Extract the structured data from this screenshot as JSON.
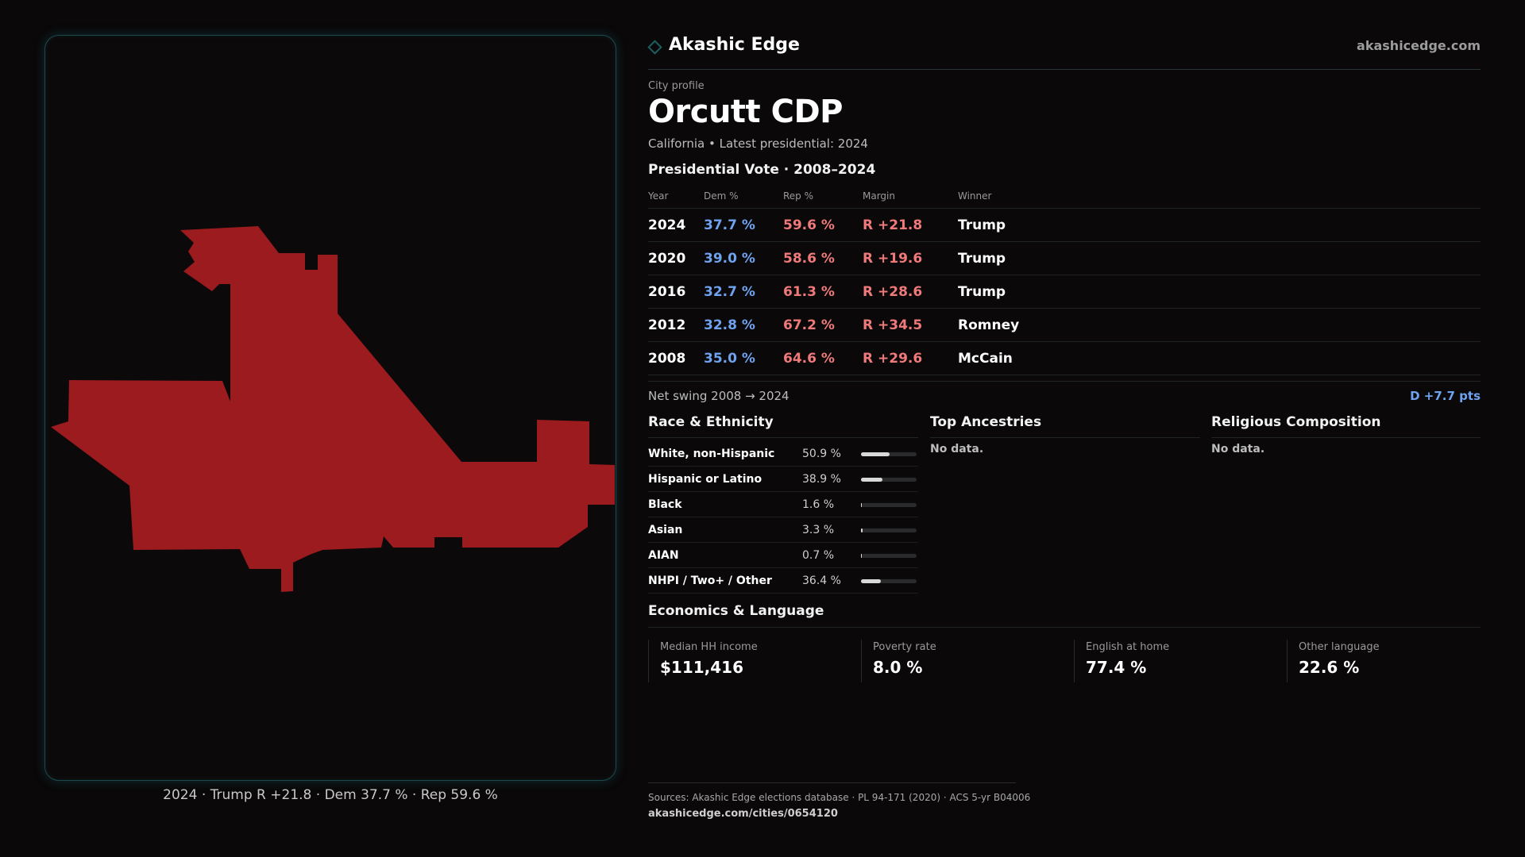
{
  "brand": {
    "name": "Akashic Edge",
    "url": "akashicedge.com",
    "icon": "diamond-icon",
    "icon_color": "#1d5e61"
  },
  "profile": {
    "eyebrow": "City profile",
    "title": "Orcutt CDP",
    "subtitle": "California • Latest presidential: 2024"
  },
  "map": {
    "fill_color": "#9b1b1e",
    "caption": "2024 · Trump R +21.8 · Dem 37.7 % · Rep 59.6 %"
  },
  "vote": {
    "heading": "Presidential Vote · 2008–2024",
    "columns": [
      "Year",
      "Dem %",
      "Rep %",
      "Margin",
      "Winner"
    ],
    "rows": [
      {
        "year": "2024",
        "dem": "37.7 %",
        "rep": "59.6 %",
        "margin": "R +21.8",
        "winner": "Trump"
      },
      {
        "year": "2020",
        "dem": "39.0 %",
        "rep": "58.6 %",
        "margin": "R +19.6",
        "winner": "Trump"
      },
      {
        "year": "2016",
        "dem": "32.7 %",
        "rep": "61.3 %",
        "margin": "R +28.6",
        "winner": "Trump"
      },
      {
        "year": "2012",
        "dem": "32.8 %",
        "rep": "67.2 %",
        "margin": "R +34.5",
        "winner": "Romney"
      },
      {
        "year": "2008",
        "dem": "35.0 %",
        "rep": "64.6 %",
        "margin": "R +29.6",
        "winner": "McCain"
      }
    ],
    "dem_color": "#6fa3ef",
    "rep_color": "#f07a7a"
  },
  "swing": {
    "label": "Net swing 2008 → 2024",
    "value": "D +7.7 pts"
  },
  "race": {
    "heading": "Race & Ethnicity",
    "rows": [
      {
        "label": "White, non-Hispanic",
        "value": "50.9 %",
        "fraction": 0.509
      },
      {
        "label": "Hispanic or Latino",
        "value": "38.9 %",
        "fraction": 0.389
      },
      {
        "label": "Black",
        "value": "1.6 %",
        "fraction": 0.016
      },
      {
        "label": "Asian",
        "value": "3.3 %",
        "fraction": 0.033
      },
      {
        "label": "AIAN",
        "value": "0.7 %",
        "fraction": 0.007
      },
      {
        "label": "NHPI / Two+ / Other",
        "value": "36.4 %",
        "fraction": 0.364
      }
    ]
  },
  "ancestries": {
    "heading": "Top Ancestries",
    "empty": "No data."
  },
  "religion": {
    "heading": "Religious Composition",
    "empty": "No data."
  },
  "economics": {
    "heading": "Economics & Language",
    "cards": [
      {
        "label": "Median HH income",
        "value": "$111,416"
      },
      {
        "label": "Poverty rate",
        "value": "8.0 %"
      },
      {
        "label": "English at home",
        "value": "77.4 %"
      },
      {
        "label": "Other language",
        "value": "22.6 %"
      }
    ]
  },
  "footer": {
    "sources": "Sources: Akashic Edge elections database · PL 94-171 (2020) · ACS 5-yr B04006",
    "url": "akashicedge.com/cities/0654120"
  }
}
